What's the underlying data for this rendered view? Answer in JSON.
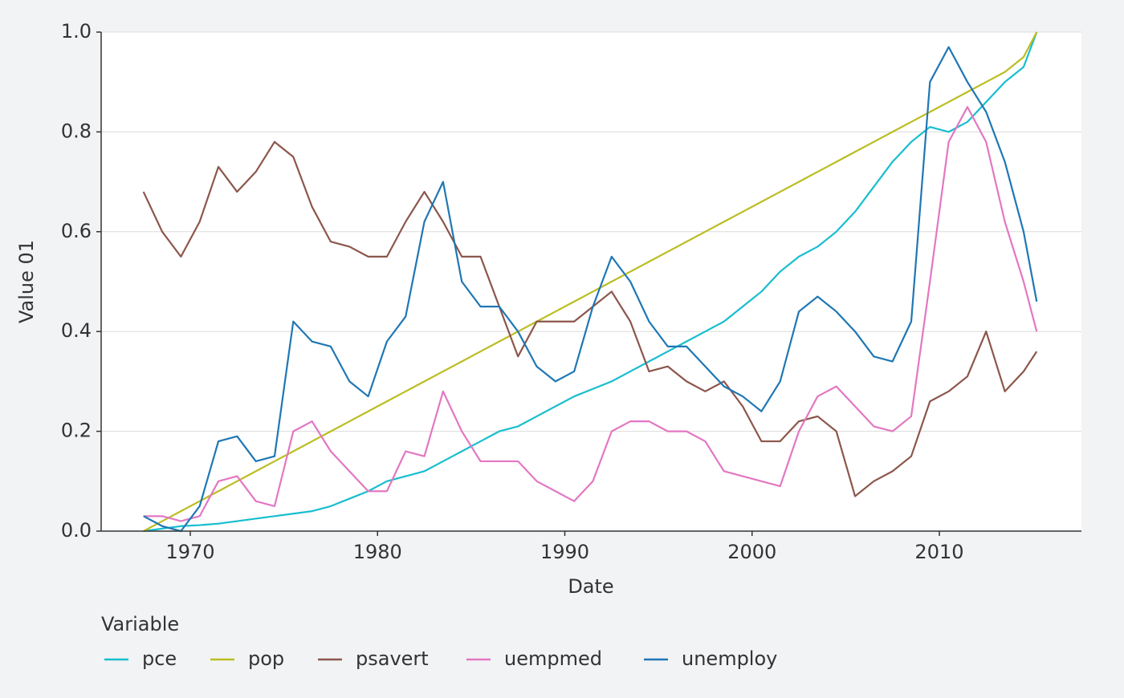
{
  "chart_data": {
    "type": "line",
    "x_label": "Date",
    "y_label": "Value 01",
    "legend_title": "Variable",
    "legend": "bottom",
    "grid": true,
    "xlim": [
      1965.24,
      2017.59
    ],
    "xticks": [
      1970,
      1980,
      1990,
      2000,
      2010
    ],
    "ylim": [
      0,
      1
    ],
    "yticks": [
      {
        "value": 0,
        "label": "0.0"
      },
      0.2,
      0.4,
      0.6,
      0.8,
      {
        "value": 1,
        "label": "1.0"
      }
    ],
    "x": [
      1967.5,
      1968.5,
      1969.5,
      1970.5,
      1971.5,
      1972.5,
      1973.5,
      1974.5,
      1975.5,
      1976.5,
      1977.5,
      1978.5,
      1979.5,
      1980.5,
      1981.5,
      1982.5,
      1983.5,
      1984.5,
      1985.5,
      1986.5,
      1987.5,
      1988.5,
      1989.5,
      1990.5,
      1991.5,
      1992.5,
      1993.5,
      1994.5,
      1995.5,
      1996.5,
      1997.5,
      1998.5,
      1999.5,
      2000.5,
      2001.5,
      2002.5,
      2003.5,
      2004.5,
      2005.5,
      2006.5,
      2007.5,
      2008.5,
      2009.5,
      2010.5,
      2011.5,
      2012.5,
      2013.5,
      2014.5,
      2015.2
    ],
    "series": [
      {
        "name": "pce",
        "color": "#17becf",
        "values": [
          0,
          0.005,
          0.01,
          0.012,
          0.015,
          0.02,
          0.025,
          0.03,
          0.035,
          0.04,
          0.05,
          0.065,
          0.08,
          0.1,
          0.11,
          0.12,
          0.14,
          0.16,
          0.18,
          0.2,
          0.21,
          0.23,
          0.25,
          0.27,
          0.285,
          0.3,
          0.32,
          0.34,
          0.36,
          0.38,
          0.4,
          0.42,
          0.45,
          0.48,
          0.52,
          0.55,
          0.57,
          0.6,
          0.64,
          0.69,
          0.74,
          0.78,
          0.81,
          0.8,
          0.82,
          0.86,
          0.9,
          0.93,
          1.0
        ]
      },
      {
        "name": "pop",
        "color": "#bcbd22",
        "values": [
          0,
          0.02,
          0.04,
          0.06,
          0.08,
          0.1,
          0.12,
          0.14,
          0.16,
          0.18,
          0.2,
          0.22,
          0.24,
          0.26,
          0.28,
          0.3,
          0.32,
          0.34,
          0.36,
          0.38,
          0.4,
          0.42,
          0.44,
          0.46,
          0.48,
          0.5,
          0.52,
          0.54,
          0.56,
          0.58,
          0.6,
          0.62,
          0.64,
          0.66,
          0.68,
          0.7,
          0.72,
          0.74,
          0.76,
          0.78,
          0.8,
          0.82,
          0.84,
          0.86,
          0.88,
          0.9,
          0.92,
          0.95,
          1.0
        ]
      },
      {
        "name": "psavert",
        "color": "#8c564b",
        "values": [
          0.68,
          0.6,
          0.55,
          0.62,
          0.73,
          0.68,
          0.72,
          0.78,
          0.75,
          0.65,
          0.58,
          0.57,
          0.55,
          0.55,
          0.62,
          0.68,
          0.62,
          0.55,
          0.55,
          0.45,
          0.35,
          0.42,
          0.42,
          0.42,
          0.45,
          0.48,
          0.42,
          0.32,
          0.33,
          0.3,
          0.28,
          0.3,
          0.25,
          0.18,
          0.18,
          0.22,
          0.23,
          0.2,
          0.07,
          0.1,
          0.12,
          0.15,
          0.26,
          0.28,
          0.31,
          0.4,
          0.28,
          0.32,
          0.36
        ]
      },
      {
        "name": "uempmed",
        "color": "#e377c2",
        "values": [
          0.03,
          0.03,
          0.02,
          0.03,
          0.1,
          0.11,
          0.06,
          0.05,
          0.2,
          0.22,
          0.16,
          0.12,
          0.08,
          0.08,
          0.16,
          0.15,
          0.28,
          0.2,
          0.14,
          0.14,
          0.14,
          0.1,
          0.08,
          0.06,
          0.1,
          0.2,
          0.22,
          0.22,
          0.2,
          0.2,
          0.18,
          0.12,
          0.11,
          0.1,
          0.09,
          0.2,
          0.27,
          0.29,
          0.25,
          0.21,
          0.2,
          0.23,
          0.5,
          0.78,
          0.85,
          0.78,
          0.62,
          0.5,
          0.4
        ]
      },
      {
        "name": "unemploy",
        "color": "#1f77b4",
        "values": [
          0.03,
          0.01,
          0.0,
          0.05,
          0.18,
          0.19,
          0.14,
          0.15,
          0.42,
          0.38,
          0.37,
          0.3,
          0.27,
          0.38,
          0.43,
          0.62,
          0.7,
          0.5,
          0.45,
          0.45,
          0.4,
          0.33,
          0.3,
          0.32,
          0.45,
          0.55,
          0.5,
          0.42,
          0.37,
          0.37,
          0.33,
          0.29,
          0.27,
          0.24,
          0.3,
          0.44,
          0.47,
          0.44,
          0.4,
          0.35,
          0.34,
          0.42,
          0.9,
          0.97,
          0.9,
          0.84,
          0.74,
          0.6,
          0.46
        ]
      }
    ]
  }
}
